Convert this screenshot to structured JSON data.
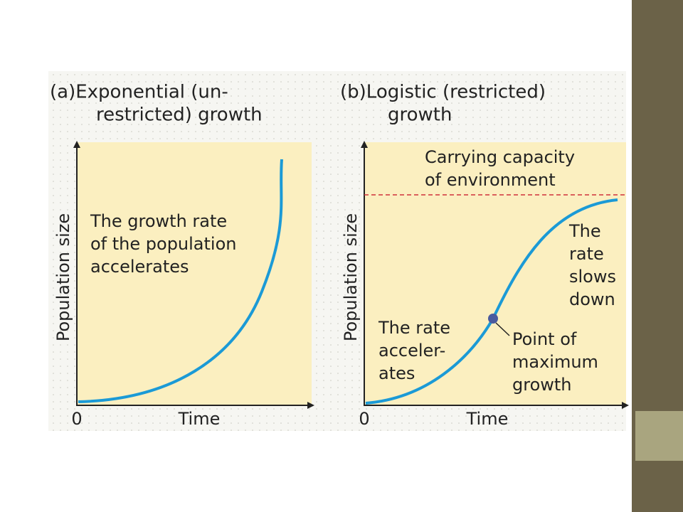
{
  "panels": [
    {
      "title_lines": [
        "(a)Exponential (un-",
        "restricted) growth"
      ],
      "y_label": "Population size",
      "origin": "0",
      "x_label": "Time",
      "annotation": [
        "The growth rate",
        "of the population",
        "accelerates"
      ]
    },
    {
      "title_lines": [
        "(b)Logistic (restricted)",
        "growth"
      ],
      "y_label": "Population size",
      "origin": "0",
      "x_label": "Time",
      "carrying_capacity": [
        "Carrying capacity",
        "of environment"
      ],
      "slows": [
        "The",
        "rate",
        "slows",
        "down"
      ],
      "accelerates": [
        "The rate",
        "acceler-",
        "ates"
      ],
      "max_point": [
        "Point of",
        "maximum",
        "growth"
      ]
    }
  ]
}
